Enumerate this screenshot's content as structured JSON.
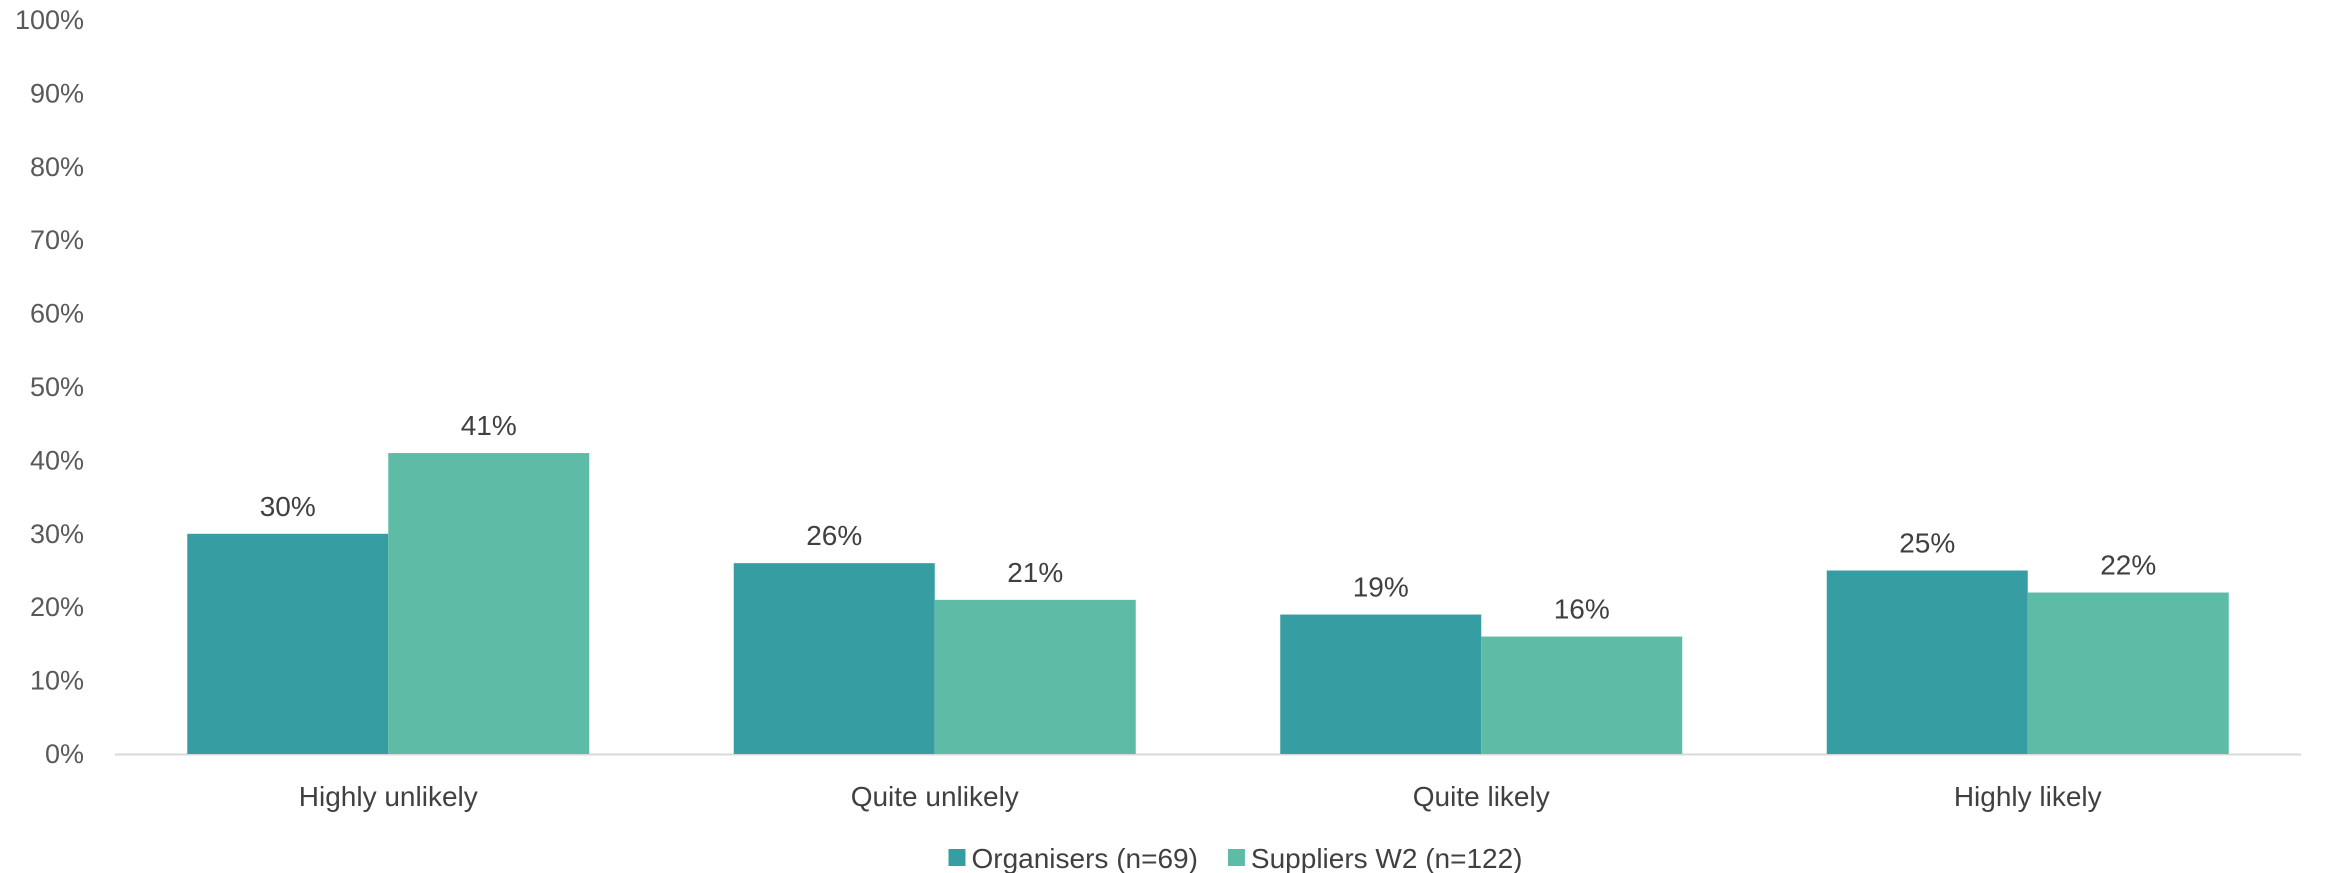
{
  "chart_data": {
    "type": "bar",
    "categories": [
      "Highly unlikely",
      "Quite unlikely",
      "Quite likely",
      "Highly likely"
    ],
    "series": [
      {
        "name": "Organisers (n=69)",
        "values": [
          30,
          26,
          19,
          25
        ],
        "color": "#369ea3"
      },
      {
        "name": "Suppliers W2 (n=122)",
        "values": [
          41,
          21,
          16,
          22
        ],
        "color": "#5ebba6"
      }
    ],
    "data_labels": [
      [
        "30%",
        "26%",
        "19%",
        "25%"
      ],
      [
        "41%",
        "21%",
        "16%",
        "22%"
      ]
    ],
    "y_ticks": [
      "0%",
      "10%",
      "20%",
      "30%",
      "40%",
      "50%",
      "60%",
      "70%",
      "80%",
      "90%",
      "100%"
    ],
    "ylim": [
      0,
      100
    ],
    "grid": false,
    "legend_position": "bottom",
    "axis_color": "#d9d9d9"
  }
}
